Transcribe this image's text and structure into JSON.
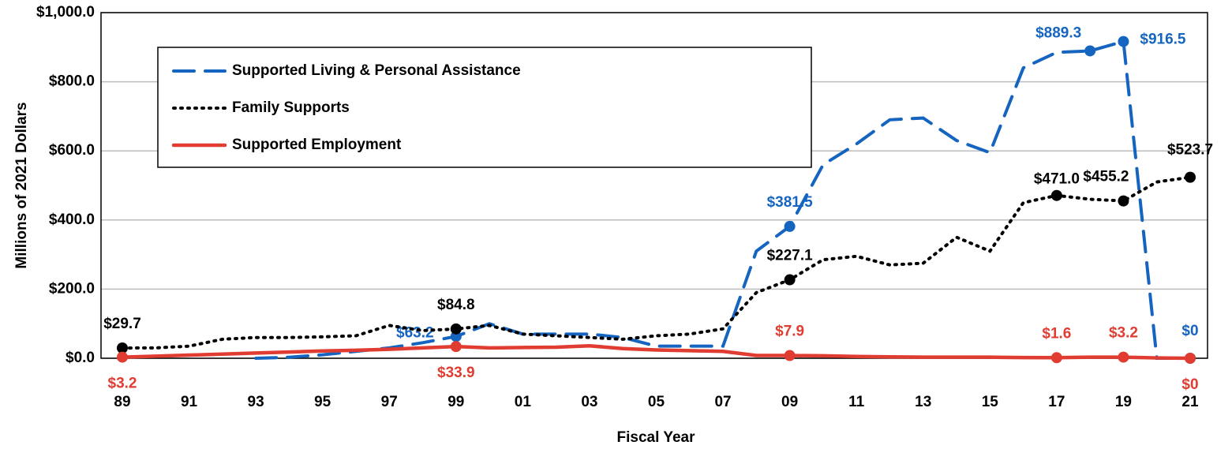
{
  "chart_data": {
    "type": "line",
    "y_label": "Millions of 2021 Dollars",
    "x_label": "Fiscal Year",
    "categories": [
      "89",
      null,
      "91",
      null,
      "93",
      null,
      "95",
      null,
      "97",
      null,
      "99",
      null,
      "01",
      null,
      "03",
      null,
      "05",
      null,
      "07",
      null,
      "09",
      null,
      "11",
      null,
      "13",
      null,
      "15",
      null,
      "17",
      null,
      "19",
      null,
      "21"
    ],
    "ylim": [
      0,
      1000
    ],
    "yticks": [
      {
        "value": 0,
        "label": "$0.0"
      },
      {
        "value": 200,
        "label": "$200.0"
      },
      {
        "value": 400,
        "label": "$400.0"
      },
      {
        "value": 600,
        "label": "$600.0"
      },
      {
        "value": 800,
        "label": "$800.0"
      },
      {
        "value": 1000,
        "label": "$1,000.0"
      }
    ],
    "grid": true,
    "legend": "upper left",
    "series": [
      {
        "name": "Supported Living & Personal Assistance",
        "color": "#1565c0",
        "style": "dashed",
        "values": [
          null,
          null,
          null,
          null,
          0,
          3,
          10,
          20,
          30,
          45,
          63.2,
          100,
          70,
          70,
          70,
          60,
          35,
          35,
          35,
          310,
          381.5,
          560,
          620,
          690,
          695,
          630,
          595,
          840,
          885,
          889.3,
          916.5,
          0,
          0
        ],
        "value_labels": [
          null,
          null,
          null,
          null,
          null,
          null,
          null,
          null,
          null,
          null,
          "$63.2",
          null,
          null,
          null,
          null,
          null,
          null,
          null,
          null,
          null,
          "$381.5",
          null,
          null,
          null,
          null,
          null,
          null,
          null,
          null,
          "$889.3",
          "$916.5",
          null,
          "$0"
        ]
      },
      {
        "name": "Family Supports",
        "color": "#000000",
        "style": "dotted",
        "values": [
          29.7,
          30,
          35,
          55,
          60,
          60,
          62,
          65,
          95,
          80,
          84.8,
          95,
          70,
          65,
          60,
          55,
          65,
          70,
          85,
          190,
          227.1,
          285,
          295,
          270,
          275,
          350,
          310,
          450,
          471.0,
          460,
          455.2,
          510,
          523.7
        ],
        "value_labels": [
          "$29.7",
          null,
          null,
          null,
          null,
          null,
          null,
          null,
          null,
          null,
          "$84.8",
          null,
          null,
          null,
          null,
          null,
          null,
          null,
          null,
          null,
          "$227.1",
          null,
          null,
          null,
          null,
          null,
          null,
          null,
          "$471.0",
          null,
          "$455.2",
          null,
          "$523.7"
        ]
      },
      {
        "name": "Supported Employment",
        "color": "#e03c31",
        "style": "solid",
        "values": [
          3.2,
          6,
          9,
          12,
          15,
          18,
          21,
          23,
          26,
          30,
          33.9,
          30,
          31,
          32,
          36,
          28,
          24,
          22,
          20,
          8,
          7.9,
          7,
          5,
          4,
          3,
          3,
          3,
          2,
          1.6,
          3,
          3.2,
          1,
          0
        ],
        "value_labels": [
          "$3.2",
          null,
          null,
          null,
          null,
          null,
          null,
          null,
          null,
          null,
          "$33.9",
          null,
          null,
          null,
          null,
          null,
          null,
          null,
          null,
          null,
          "$7.9",
          null,
          null,
          null,
          null,
          null,
          null,
          null,
          "$1.6",
          null,
          "$3.2",
          null,
          "$0"
        ]
      }
    ]
  }
}
